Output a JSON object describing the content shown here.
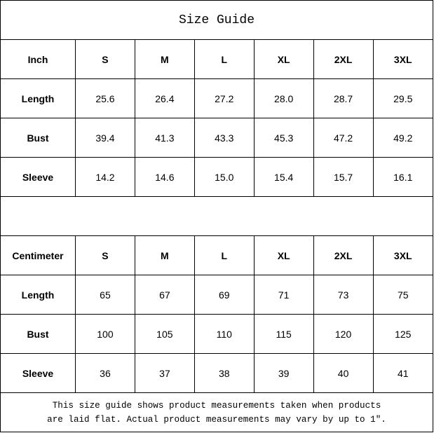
{
  "title": "Size Guide",
  "sizes": [
    "S",
    "M",
    "L",
    "XL",
    "2XL",
    "3XL"
  ],
  "inch": {
    "header": "Inch",
    "rows": [
      {
        "label": "Length",
        "values": [
          "25.6",
          "26.4",
          "27.2",
          "28.0",
          "28.7",
          "29.5"
        ]
      },
      {
        "label": "Bust",
        "values": [
          "39.4",
          "41.3",
          "43.3",
          "45.3",
          "47.2",
          "49.2"
        ]
      },
      {
        "label": "Sleeve",
        "values": [
          "14.2",
          "14.6",
          "15.0",
          "15.4",
          "15.7",
          "16.1"
        ]
      }
    ]
  },
  "centimeter": {
    "header": "Centimeter",
    "rows": [
      {
        "label": "Length",
        "values": [
          "65",
          "67",
          "69",
          "71",
          "73",
          "75"
        ]
      },
      {
        "label": "Bust",
        "values": [
          "100",
          "105",
          "110",
          "115",
          "120",
          "125"
        ]
      },
      {
        "label": "Sleeve",
        "values": [
          "36",
          "37",
          "38",
          "39",
          "40",
          "41"
        ]
      }
    ]
  },
  "footer": {
    "line1": "This size guide shows product measurements taken when products",
    "line2": "are laid flat. Actual product measurements may vary by up to 1″."
  }
}
